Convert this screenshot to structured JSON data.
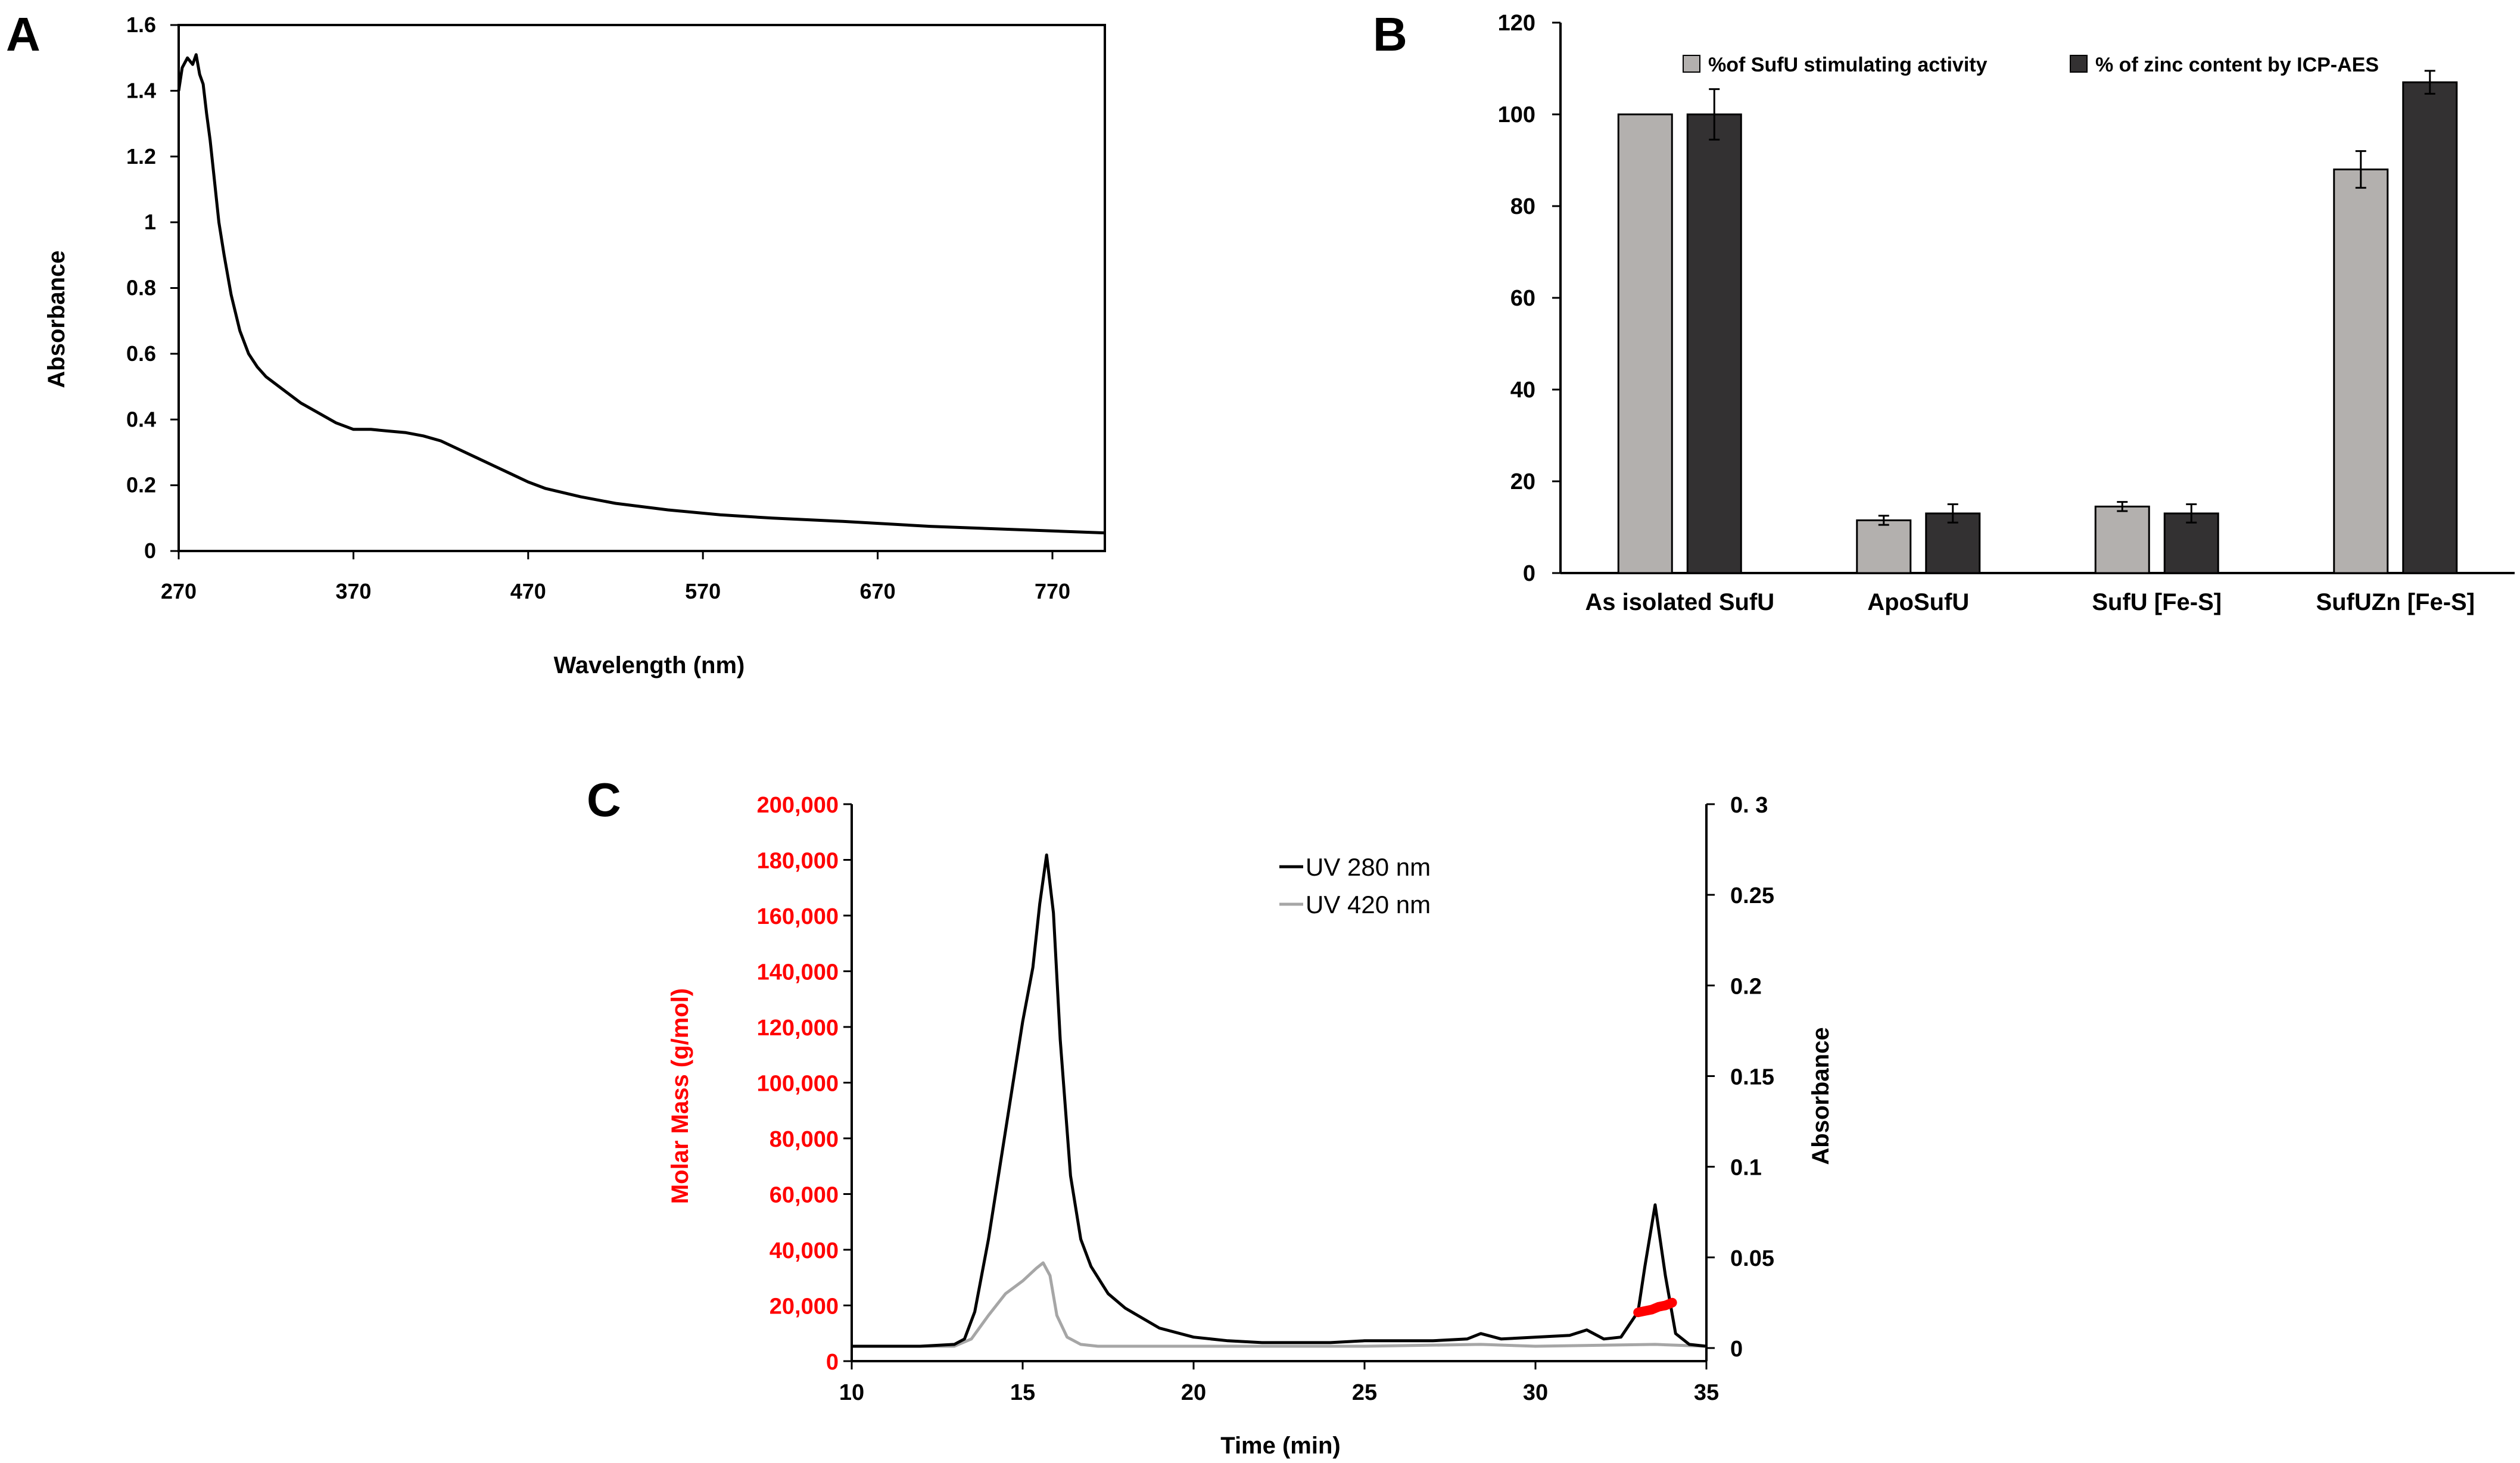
{
  "chart_data": [
    {
      "panel": "A",
      "type": "line",
      "title": "",
      "xlabel": "Wavelength (nm)",
      "ylabel": "Absorbance",
      "xlim": [
        270,
        800
      ],
      "ylim": [
        0,
        1.6
      ],
      "xticks": [
        "270",
        "370",
        "470",
        "570",
        "670",
        "770"
      ],
      "xtick_values": [
        270,
        370,
        470,
        570,
        670,
        770
      ],
      "yticks": [
        "0",
        "0.2",
        "0.4",
        "0.6",
        "0.8",
        "1",
        "1.2",
        "1.4",
        "1.6"
      ],
      "ytick_values": [
        0,
        0.2,
        0.4,
        0.6,
        0.8,
        1.0,
        1.2,
        1.4,
        1.6
      ],
      "series": [
        {
          "name": "Absorbance",
          "color": "#000000",
          "x": [
            270,
            272,
            275,
            278,
            280,
            282,
            284,
            286,
            288,
            290,
            293,
            296,
            300,
            305,
            310,
            315,
            320,
            330,
            340,
            350,
            360,
            370,
            380,
            390,
            400,
            410,
            420,
            430,
            440,
            450,
            460,
            470,
            480,
            500,
            520,
            550,
            580,
            610,
            650,
            700,
            750,
            800
          ],
          "y": [
            1.4,
            1.47,
            1.5,
            1.48,
            1.51,
            1.45,
            1.42,
            1.33,
            1.25,
            1.15,
            1.0,
            0.9,
            0.78,
            0.67,
            0.6,
            0.56,
            0.53,
            0.49,
            0.45,
            0.42,
            0.39,
            0.37,
            0.37,
            0.365,
            0.36,
            0.35,
            0.335,
            0.31,
            0.285,
            0.26,
            0.235,
            0.21,
            0.19,
            0.165,
            0.145,
            0.125,
            0.11,
            0.1,
            0.09,
            0.075,
            0.065,
            0.055
          ]
        }
      ]
    },
    {
      "panel": "B",
      "type": "bar",
      "title": "",
      "xlabel": "",
      "ylabel": "",
      "ylim": [
        0,
        120
      ],
      "yticks": [
        "0",
        "20",
        "40",
        "60",
        "80",
        "100",
        "120"
      ],
      "ytick_values": [
        0,
        20,
        40,
        60,
        80,
        100,
        120
      ],
      "categories": [
        "As isolated SufU",
        "ApoSufU",
        "SufU [Fe-S]",
        "SufUZn [Fe-S]"
      ],
      "legend_position": "top",
      "series": [
        {
          "name": "%of SufU stimulating activity",
          "color": "#b3b0ae",
          "values": [
            100,
            11.5,
            14.5,
            88
          ],
          "errors": [
            0,
            1,
            1,
            4
          ]
        },
        {
          "name": "% of zinc content by ICP-AES",
          "color": "#333132",
          "values": [
            100,
            13,
            13,
            107
          ],
          "errors": [
            5.5,
            2,
            2,
            2.5
          ]
        }
      ]
    },
    {
      "panel": "C",
      "type": "line",
      "title": "",
      "xlabel": "Time (min)",
      "ylabel": "Molar Mass (g/mol)",
      "y2label": "Absorbance",
      "xlim": [
        10,
        35
      ],
      "ylim": [
        0,
        200000
      ],
      "y2lim": [
        0,
        0.3
      ],
      "xticks": [
        "10",
        "15",
        "20",
        "25",
        "30",
        "35"
      ],
      "xtick_values": [
        10,
        15,
        20,
        25,
        30,
        35
      ],
      "yticks": [
        "0",
        "20,000",
        "40,000",
        "60,000",
        "80,000",
        "100,000",
        "120,000",
        "140,000",
        "160,000",
        "180,000",
        "200,000"
      ],
      "ytick_values": [
        0,
        20000,
        40000,
        60000,
        80000,
        100000,
        120000,
        140000,
        160000,
        180000,
        200000
      ],
      "y2ticks": [
        "0",
        "0.05",
        "0.1",
        "0.15",
        "0.2",
        "0.25",
        "0. 3"
      ],
      "y2tick_values": [
        0,
        0.05,
        0.1,
        0.15,
        0.2,
        0.25,
        0.3
      ],
      "legend_position": "top-right",
      "series": [
        {
          "name": "UV 280 nm",
          "color": "#000000",
          "axis": "y2",
          "x": [
            10,
            12,
            13,
            13.3,
            13.6,
            14,
            14.5,
            15,
            15.3,
            15.5,
            15.7,
            15.9,
            16.1,
            16.4,
            16.7,
            17,
            17.5,
            18,
            19,
            20,
            21,
            22,
            23,
            24,
            25,
            26,
            27,
            28,
            28.4,
            29,
            30,
            31,
            31.5,
            32,
            32.5,
            33,
            33.2,
            33.5,
            33.8,
            34.1,
            34.5,
            35
          ],
          "y": [
            0.001,
            0.001,
            0.002,
            0.005,
            0.02,
            0.06,
            0.12,
            0.18,
            0.21,
            0.245,
            0.272,
            0.24,
            0.17,
            0.095,
            0.06,
            0.045,
            0.03,
            0.022,
            0.011,
            0.006,
            0.004,
            0.003,
            0.003,
            0.003,
            0.004,
            0.004,
            0.004,
            0.005,
            0.008,
            0.005,
            0.006,
            0.007,
            0.01,
            0.005,
            0.006,
            0.02,
            0.045,
            0.079,
            0.04,
            0.008,
            0.002,
            0.001
          ]
        },
        {
          "name": "UV 420 nm",
          "color": "#a6a6a6",
          "axis": "y2",
          "x": [
            10,
            12,
            13,
            13.5,
            14,
            14.5,
            15,
            15.4,
            15.6,
            15.8,
            16,
            16.3,
            16.7,
            17.2,
            18,
            20,
            25,
            28.4,
            30,
            33.5,
            35
          ],
          "y": [
            0.001,
            0.001,
            0.001,
            0.005,
            0.018,
            0.03,
            0.037,
            0.044,
            0.047,
            0.04,
            0.018,
            0.006,
            0.002,
            0.001,
            0.001,
            0.001,
            0.001,
            0.002,
            0.001,
            0.002,
            0.001
          ]
        },
        {
          "name": "Molar Mass",
          "color": "#ff0000",
          "axis": "y",
          "x": [
            33.0,
            33.2,
            33.4,
            33.6,
            33.8,
            34.0
          ],
          "y": [
            17500,
            18000,
            18500,
            19500,
            20000,
            21000
          ]
        }
      ]
    }
  ]
}
